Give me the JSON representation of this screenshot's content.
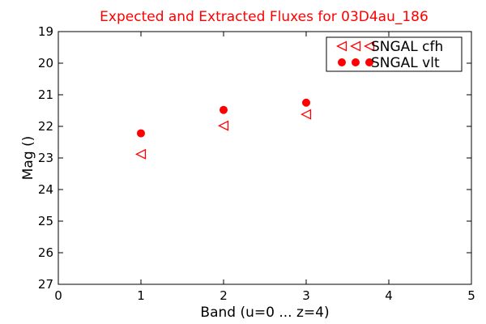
{
  "chart_data": {
    "type": "scatter",
    "title": "Expected and Extracted Fluxes for 03D4au_186",
    "xlabel": "Band (u=0 ... z=4)",
    "ylabel": "Mag ()",
    "xlim": [
      0,
      5
    ],
    "ylim": [
      27,
      19
    ],
    "y_inverted": true,
    "x_ticks": [
      0,
      1,
      2,
      3,
      4,
      5
    ],
    "y_ticks": [
      19,
      20,
      21,
      22,
      23,
      24,
      25,
      26,
      27
    ],
    "grid": false,
    "legend_position": "top-right",
    "series": [
      {
        "name": "SNGAL cfh",
        "marker": "triangle-left-open",
        "color": "#ff0000",
        "x": [
          1,
          2,
          3
        ],
        "y": [
          22.88,
          21.98,
          21.62
        ]
      },
      {
        "name": "SNGAL vlt",
        "marker": "circle-filled",
        "color": "#ff0000",
        "x": [
          1,
          2,
          3
        ],
        "y": [
          22.22,
          21.48,
          21.25
        ]
      }
    ]
  },
  "colors": {
    "title": "#ff0000",
    "markers": "#ff0000"
  }
}
